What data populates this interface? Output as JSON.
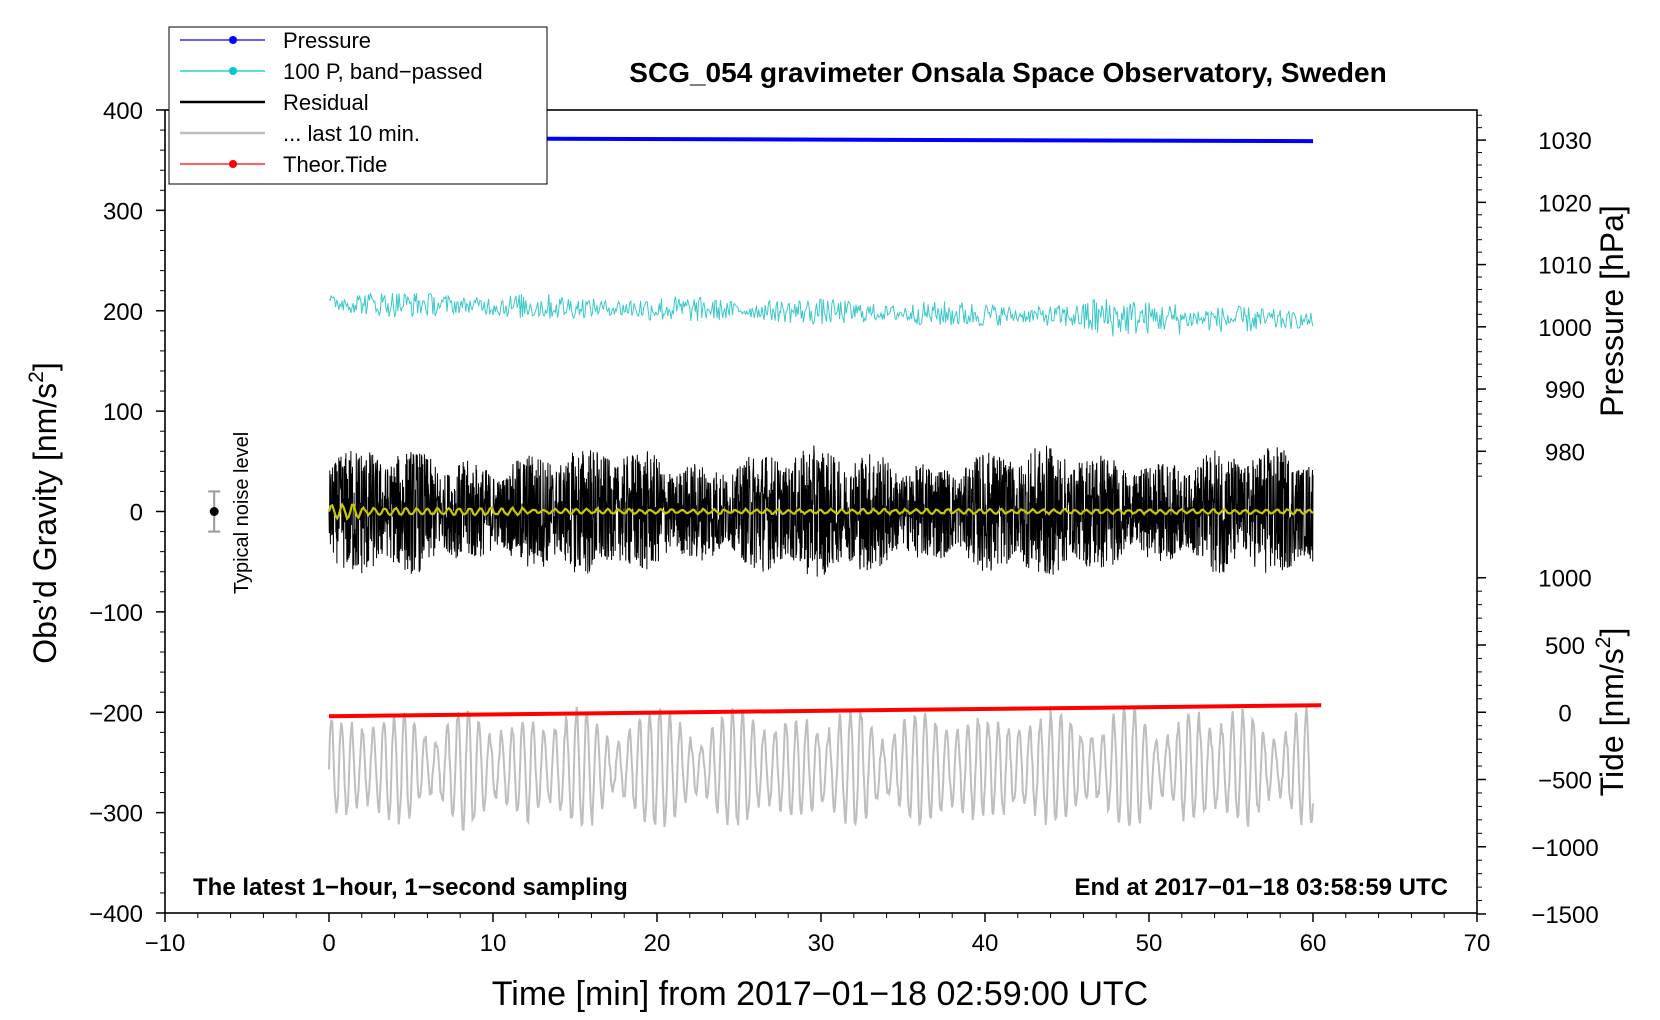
{
  "chart_data": {
    "type": "line",
    "title": "SCG_054 gravimeter Onsala Space Observatory, Sweden",
    "xlabel": "Time [min] from 2017−01−18 02:59:00 UTC",
    "ylabel": "Obs’d Gravity [nm/s²]",
    "ylabel_main": "Obs’d Gravity [nm/s",
    "ylabel_sup": "2",
    "ylabel_close": "]",
    "y2label": "Pressure [hPa]",
    "y3label_main": "Tide [nm/s",
    "y3label_sup": "2",
    "y3label_close": "]",
    "xlim": [
      -10,
      70
    ],
    "ylim": [
      -400,
      400
    ],
    "xticks": [
      -10,
      0,
      10,
      20,
      30,
      40,
      50,
      60,
      70
    ],
    "xtick_labels": [
      "−10",
      "0",
      "10",
      "20",
      "30",
      "40",
      "50",
      "60",
      "70"
    ],
    "yticks": [
      400,
      300,
      200,
      100,
      0,
      -100,
      -200,
      -300,
      -400
    ],
    "ytick_labels": [
      "400",
      "300",
      "200",
      "100",
      "0",
      "−100",
      "−200",
      "−300",
      "−400"
    ],
    "pressure_axis": {
      "ticks": [
        1030,
        1020,
        1010,
        1000,
        990,
        980
      ],
      "tick_labels": [
        "1030",
        "1020",
        "1010",
        "1000",
        "990",
        "980"
      ],
      "gravity_at_1000": 184,
      "gravity_per_hPa": 6.2
    },
    "tide_axis": {
      "ticks": [
        1000,
        500,
        0,
        -500,
        -1000,
        -1500
      ],
      "tick_labels": [
        "1000",
        "500",
        "0",
        "−500",
        "−1000",
        "−1500"
      ],
      "gravity_at_0": -200,
      "gravity_per_unit": 0.134
    },
    "legend": {
      "position": "top-left",
      "entries": [
        {
          "label": "Pressure",
          "color": "#0000ff",
          "marker": true
        },
        {
          "label": "100 P, band−passed",
          "color": "#00c8c8",
          "marker": true
        },
        {
          "label": "Residual",
          "color": "#000000",
          "marker": false
        },
        {
          "label": "... last 10 min.",
          "color": "#bebebe",
          "marker": false
        },
        {
          "label": "Theor.Tide",
          "color": "#ff0000",
          "marker": true
        }
      ]
    },
    "series": [
      {
        "name": "Pressure",
        "color": "#0000ff",
        "x": [
          0,
          60
        ],
        "y": [
          372,
          369
        ]
      },
      {
        "name": "100 P, band-passed",
        "color": "#3cc8c8",
        "x_range": [
          0,
          60
        ],
        "center": [
          208,
          190
        ],
        "amplitude": 12
      },
      {
        "name": "Residual",
        "color": "#000000",
        "x_range": [
          0,
          60
        ],
        "center": 0,
        "amplitude": 60
      },
      {
        "name": "... last 10 min.",
        "color": "#bebebe",
        "x_range": [
          0,
          60
        ],
        "center": -255,
        "amplitude": 45
      },
      {
        "name": "Theor.Tide",
        "color": "#ff0000",
        "x": [
          0,
          60.5
        ],
        "y": [
          -204,
          -193
        ]
      },
      {
        "name": "Smoothed residual",
        "color": "#c8c800",
        "x_range": [
          0,
          60
        ],
        "center": 0,
        "amplitude": 2
      }
    ],
    "noise_bar": {
      "label": "Typical noise level",
      "x": -7,
      "y": 0,
      "half_range": 20
    },
    "annotations": {
      "bottom_left": "The latest 1−hour, 1−second sampling",
      "bottom_right": "End at 2017−01−18 03:58:59 UTC"
    }
  }
}
